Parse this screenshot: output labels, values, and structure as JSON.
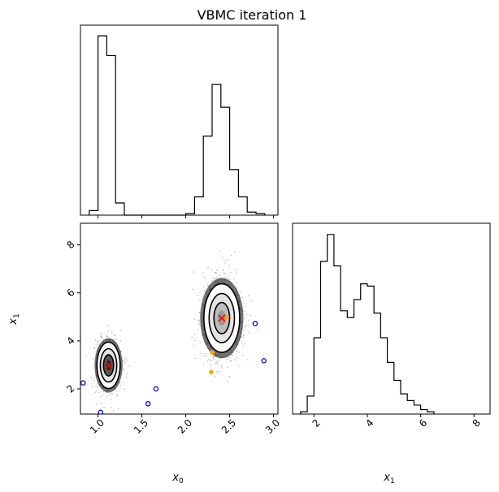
{
  "title": "VBMC iteration 1",
  "chart_data": [
    {
      "type": "histogram",
      "panel": "x0-marginal",
      "xlim": [
        0.8,
        3.05
      ],
      "bins": [
        {
          "x0": 0.9,
          "x1": 1.0,
          "count": 3
        },
        {
          "x0": 1.0,
          "x1": 1.1,
          "count": 118
        },
        {
          "x0": 1.1,
          "x1": 1.2,
          "count": 105
        },
        {
          "x0": 1.2,
          "x1": 1.3,
          "count": 8
        },
        {
          "x0": 1.3,
          "x1": 2.0,
          "count": 0
        },
        {
          "x0": 2.0,
          "x1": 2.1,
          "count": 1
        },
        {
          "x0": 2.1,
          "x1": 2.2,
          "count": 12
        },
        {
          "x0": 2.2,
          "x1": 2.3,
          "count": 52
        },
        {
          "x0": 2.3,
          "x1": 2.4,
          "count": 86
        },
        {
          "x0": 2.4,
          "x1": 2.5,
          "count": 71
        },
        {
          "x0": 2.5,
          "x1": 2.6,
          "count": 30
        },
        {
          "x0": 2.6,
          "x1": 2.7,
          "count": 12
        },
        {
          "x0": 2.7,
          "x1": 2.8,
          "count": 2
        },
        {
          "x0": 2.8,
          "x1": 2.9,
          "count": 1
        }
      ],
      "ylim": [
        0,
        125
      ]
    },
    {
      "type": "scatter",
      "panel": "x0-x1-joint",
      "xlabel": "x0",
      "ylabel": "x1",
      "xlim": [
        0.8,
        3.05
      ],
      "ylim": [
        0.95,
        8.9
      ],
      "xticks": [
        "1.0",
        "1.5",
        "2.0",
        "2.5",
        "3.0"
      ],
      "yticks": [
        "2",
        "4",
        "6",
        "8"
      ],
      "modes": [
        {
          "cx": 1.12,
          "cy": 2.98,
          "sx": 0.055,
          "sy": 0.42
        },
        {
          "cx": 2.41,
          "cy": 4.95,
          "sx": 0.085,
          "sy": 0.62
        }
      ],
      "training_points_blue": [
        [
          0.83,
          2.25
        ],
        [
          1.03,
          1.02
        ],
        [
          1.57,
          1.38
        ],
        [
          1.66,
          2.0
        ],
        [
          2.79,
          4.72
        ],
        [
          2.89,
          3.17
        ]
      ],
      "active_points_orange": [
        [
          2.3,
          3.52
        ],
        [
          2.29,
          2.7
        ],
        [
          2.47,
          5.0
        ]
      ],
      "posterior_mean_red": [
        [
          1.12,
          2.98
        ],
        [
          2.41,
          4.95
        ]
      ]
    },
    {
      "type": "histogram",
      "panel": "x1-marginal",
      "xlabel": "x1",
      "xlim": [
        1.2,
        8.6
      ],
      "xticks": [
        "2",
        "4",
        "6",
        "8"
      ],
      "bins": [
        {
          "x0": 1.5,
          "x1": 1.75,
          "count": 1
        },
        {
          "x0": 1.75,
          "x1": 2.0,
          "count": 8
        },
        {
          "x0": 2.0,
          "x1": 2.25,
          "count": 34
        },
        {
          "x0": 2.25,
          "x1": 2.5,
          "count": 68
        },
        {
          "x0": 2.5,
          "x1": 2.75,
          "count": 80
        },
        {
          "x0": 2.75,
          "x1": 3.0,
          "count": 66
        },
        {
          "x0": 3.0,
          "x1": 3.25,
          "count": 46
        },
        {
          "x0": 3.25,
          "x1": 3.5,
          "count": 43
        },
        {
          "x0": 3.5,
          "x1": 3.75,
          "count": 51
        },
        {
          "x0": 3.75,
          "x1": 4.0,
          "count": 58
        },
        {
          "x0": 4.0,
          "x1": 4.25,
          "count": 57
        },
        {
          "x0": 4.25,
          "x1": 4.5,
          "count": 45
        },
        {
          "x0": 4.5,
          "x1": 4.75,
          "count": 34
        },
        {
          "x0": 4.75,
          "x1": 5.0,
          "count": 23
        },
        {
          "x0": 5.0,
          "x1": 5.25,
          "count": 15
        },
        {
          "x0": 5.25,
          "x1": 5.5,
          "count": 9
        },
        {
          "x0": 5.5,
          "x1": 5.75,
          "count": 6
        },
        {
          "x0": 5.75,
          "x1": 6.0,
          "count": 4
        },
        {
          "x0": 6.0,
          "x1": 6.25,
          "count": 2
        },
        {
          "x0": 6.25,
          "x1": 6.5,
          "count": 1
        }
      ],
      "ylim": [
        0,
        85
      ]
    }
  ],
  "labels": {
    "x0_symbol": "x",
    "x0_sub": "0",
    "x1_symbol": "x",
    "x1_sub": "1"
  },
  "colors": {
    "training_points": "#0000cc",
    "active_points": "#ffa500",
    "mean_marker": "#ff0000"
  }
}
